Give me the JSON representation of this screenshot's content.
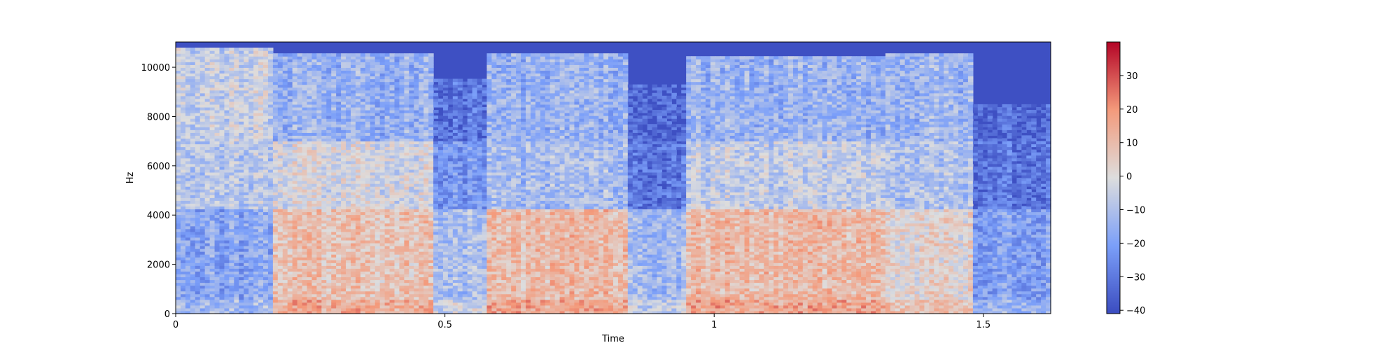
{
  "chart_data": {
    "type": "heatmap",
    "title": "",
    "xlabel": "Time",
    "ylabel": "Hz",
    "xlim": [
      0,
      1.625
    ],
    "ylim": [
      0,
      11025
    ],
    "x_ticks": [
      {
        "value": 0,
        "label": "0"
      },
      {
        "value": 0.5,
        "label": "0.5"
      },
      {
        "value": 1,
        "label": "1"
      },
      {
        "value": 1.5,
        "label": "1.5"
      }
    ],
    "y_ticks": [
      {
        "value": 0,
        "label": "0"
      },
      {
        "value": 2000,
        "label": "2000"
      },
      {
        "value": 4000,
        "label": "4000"
      },
      {
        "value": 6000,
        "label": "6000"
      },
      {
        "value": 8000,
        "label": "8000"
      },
      {
        "value": 10000,
        "label": "10000"
      }
    ],
    "colorbar": {
      "colormap": "coolwarm",
      "range": [
        -41,
        40
      ],
      "ticks": [
        {
          "value": -40,
          "label": "−40"
        },
        {
          "value": -30,
          "label": "−30"
        },
        {
          "value": -20,
          "label": "−20"
        },
        {
          "value": -10,
          "label": "−10"
        },
        {
          "value": 0,
          "label": "0"
        },
        {
          "value": 10,
          "label": "10"
        },
        {
          "value": 20,
          "label": "20"
        },
        {
          "value": 30,
          "label": "30"
        }
      ]
    },
    "spectrogram_segments": [
      {
        "t_start": 0.0,
        "t_end": 0.18,
        "top_hz": 10800,
        "mid_level": -8,
        "low_level": -18,
        "high_level": -5
      },
      {
        "t_start": 0.18,
        "t_end": 0.48,
        "top_hz": 10600,
        "mid_level": -2,
        "low_level": 8,
        "high_level": -15
      },
      {
        "t_start": 0.48,
        "t_end": 0.58,
        "top_hz": 9500,
        "mid_level": -22,
        "low_level": -10,
        "high_level": -30
      },
      {
        "t_start": 0.58,
        "t_end": 0.84,
        "top_hz": 10600,
        "mid_level": -12,
        "low_level": 10,
        "high_level": -15
      },
      {
        "t_start": 0.84,
        "t_end": 0.95,
        "top_hz": 9300,
        "mid_level": -30,
        "low_level": -12,
        "high_level": -34
      },
      {
        "t_start": 0.95,
        "t_end": 1.32,
        "top_hz": 10400,
        "mid_level": -6,
        "low_level": 10,
        "high_level": -15
      },
      {
        "t_start": 1.32,
        "t_end": 1.48,
        "top_hz": 10600,
        "mid_level": -10,
        "low_level": 2,
        "high_level": -14
      },
      {
        "t_start": 1.48,
        "t_end": 1.625,
        "top_hz": 8500,
        "mid_level": -30,
        "low_level": -20,
        "high_level": -34
      }
    ],
    "grid": false
  }
}
